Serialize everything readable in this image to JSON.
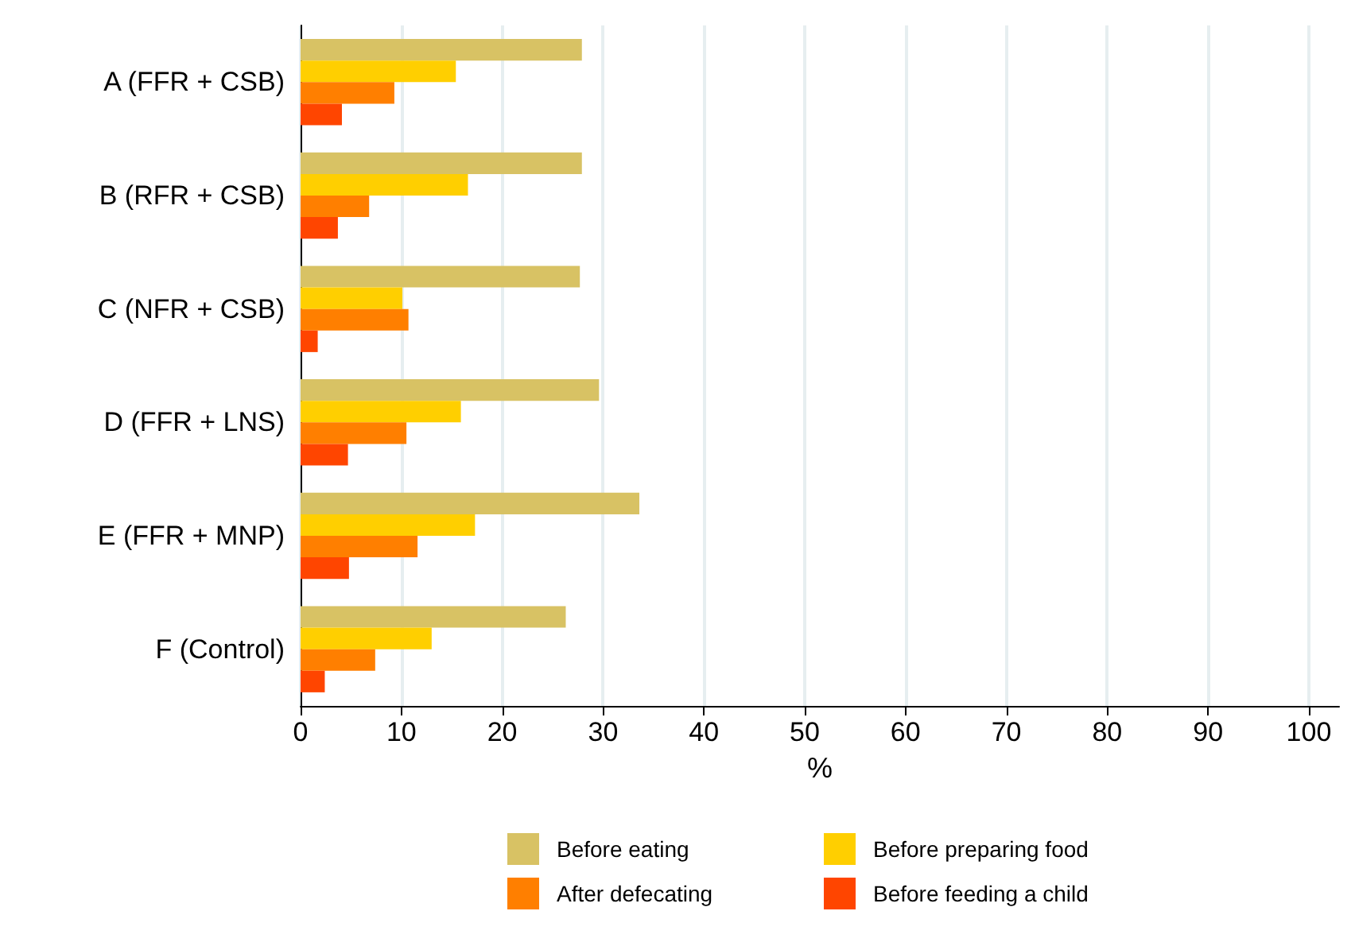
{
  "chart_data": {
    "type": "bar",
    "orientation": "horizontal",
    "xlabel": "%",
    "categories": [
      "A (FFR + CSB)",
      "B (RFR + CSB)",
      "C (NFR + CSB)",
      "D (FFR + LNS)",
      "E (FFR + MNP)",
      "F (Control)"
    ],
    "series": [
      {
        "name": "Before eating",
        "color": "#d8c264",
        "values": [
          27.9,
          27.9,
          27.7,
          29.6,
          33.6,
          26.3
        ]
      },
      {
        "name": "Before preparing food",
        "color": "#ffcf00",
        "values": [
          15.4,
          16.6,
          10.1,
          15.9,
          17.3,
          13.0
        ]
      },
      {
        "name": "After defecating",
        "color": "#ff7f00",
        "values": [
          9.3,
          6.8,
          10.7,
          10.5,
          11.6,
          7.4
        ]
      },
      {
        "name": "Before feeding a child",
        "color": "#ff4500",
        "values": [
          4.1,
          3.7,
          1.7,
          4.7,
          4.8,
          2.4
        ]
      }
    ],
    "xlim": [
      0,
      103
    ],
    "xticks": [
      0,
      10,
      20,
      30,
      40,
      50,
      60,
      70,
      80,
      90,
      100
    ],
    "grid": "x",
    "legend": "bottom"
  }
}
